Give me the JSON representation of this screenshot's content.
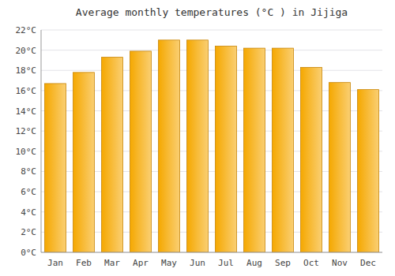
{
  "chart_data": {
    "type": "bar",
    "title": "Average monthly temperatures (°C ) in Jijiga",
    "categories": [
      "Jan",
      "Feb",
      "Mar",
      "Apr",
      "May",
      "Jun",
      "Jul",
      "Aug",
      "Sep",
      "Oct",
      "Nov",
      "Dec"
    ],
    "values": [
      16.7,
      17.8,
      19.3,
      19.9,
      21.0,
      21.0,
      20.4,
      20.2,
      20.2,
      18.3,
      16.8,
      16.1
    ],
    "color": "#F5A800",
    "ylim": [
      0,
      22
    ],
    "yticks": [
      {
        "value": 0,
        "label": "0°C"
      },
      {
        "value": 2,
        "label": "2°C"
      },
      {
        "value": 4,
        "label": "4°C"
      },
      {
        "value": 6,
        "label": "6°C"
      },
      {
        "value": 8,
        "label": "8°C"
      },
      {
        "value": 10,
        "label": "10°C"
      },
      {
        "value": 12,
        "label": "12°C"
      },
      {
        "value": 14,
        "label": "14°C"
      },
      {
        "value": 16,
        "label": "16°C"
      },
      {
        "value": 18,
        "label": "18°C"
      },
      {
        "value": 20,
        "label": "20°C"
      },
      {
        "value": 22,
        "label": "22°C"
      }
    ],
    "grid": true
  }
}
